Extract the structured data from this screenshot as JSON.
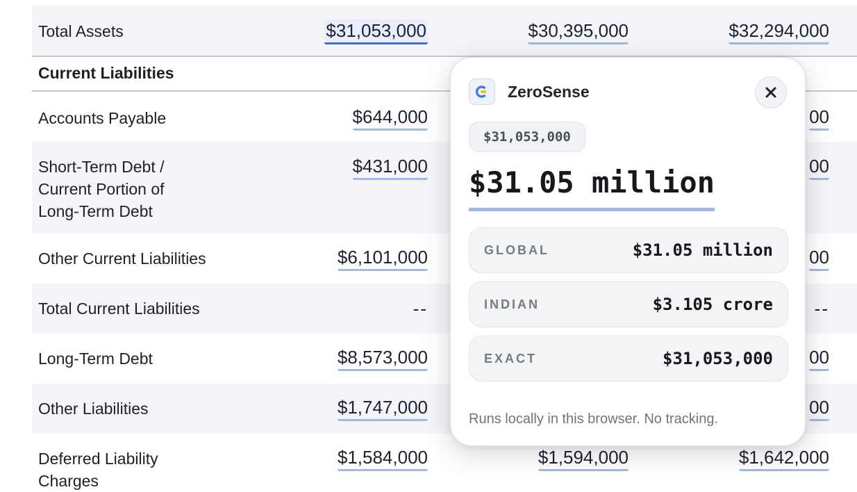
{
  "table": {
    "rows": [
      {
        "label": "Total Assets",
        "v1": "$31,053,000",
        "v2": "$30,395,000",
        "v3": "$32,294,000"
      },
      {
        "label": "Current Liabilities"
      },
      {
        "label": "Accounts Payable",
        "v1": "$644,000",
        "v3": "00"
      },
      {
        "label_lines": [
          "Short-Term Debt /",
          "Current Portion of",
          "Long-Term Debt"
        ],
        "v1": "$431,000",
        "v3": "00"
      },
      {
        "label": "Other Current Liabilities",
        "v1": "$6,101,000",
        "v3": "00"
      },
      {
        "label": "Total Current Liabilities",
        "v1": "--",
        "v3": "--"
      },
      {
        "label": "Long-Term Debt",
        "v1": "$8,573,000",
        "v3": "00"
      },
      {
        "label": "Other Liabilities",
        "v1": "$1,747,000",
        "v3": "00"
      },
      {
        "label_lines": [
          "Deferred Liability",
          "Charges"
        ],
        "v1": "$1,584,000",
        "v2": "$1,594,000",
        "v3": "$1,642,000"
      }
    ]
  },
  "popup": {
    "brand_name": "ZeroSense",
    "close_symbol": "×",
    "source_value": "$31,053,000",
    "headline": "$31.05 million",
    "formats": [
      {
        "label": "GLOBAL",
        "value": "$31.05 million"
      },
      {
        "label": "INDIAN",
        "value": "$3.105 crore"
      },
      {
        "label": "EXACT",
        "value": "$31,053,000"
      }
    ],
    "footer": "Runs locally in this browser. No tracking."
  },
  "icons": {
    "brand": "zerosense-logo-icon",
    "close": "close-icon"
  },
  "colors": {
    "accent_underline": "#9fb8e6",
    "active_underline": "#3a6fd8",
    "row_shade": "#f5f5f9",
    "logo_blue": "#4a7be0",
    "logo_yellow": "#f1b400"
  }
}
